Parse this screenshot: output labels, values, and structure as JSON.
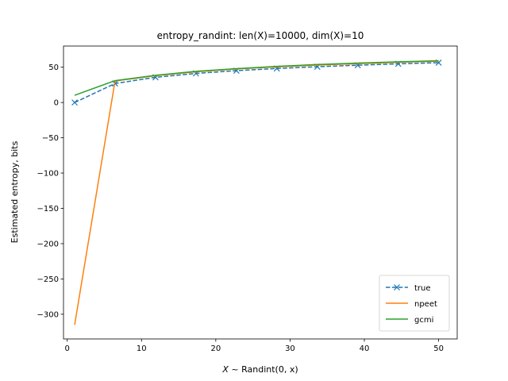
{
  "chart_data": {
    "type": "line",
    "title": "entropy_randint: len(X)=10000, dim(X)=10",
    "xlabel_prefix": "X",
    "xlabel_rest": " ~ Randint(0, x)",
    "ylabel": "Estimated entropy, bits",
    "xlim": [
      -0.5,
      52.5
    ],
    "ylim": [
      -335,
      80
    ],
    "xticks": [
      0,
      10,
      20,
      30,
      40,
      50
    ],
    "yticks": [
      50,
      0,
      -50,
      -100,
      -150,
      -200,
      -250,
      -300
    ],
    "grid": false,
    "legend_position": "lower right",
    "x": [
      1,
      6.44,
      11.89,
      17.33,
      22.78,
      28.22,
      33.67,
      39.11,
      44.56,
      50
    ],
    "series": [
      {
        "name": "true",
        "color": "#1f77b4",
        "dashed": true,
        "marker": "x",
        "values": [
          0,
          26.9,
          35.7,
          41.2,
          45.1,
          48.2,
          50.7,
          52.8,
          54.8,
          56.4
        ]
      },
      {
        "name": "npeet",
        "color": "#ff7f0e",
        "dashed": false,
        "marker": "none",
        "values": [
          -315,
          30.5,
          38.0,
          43.5,
          47.5,
          50.5,
          53.0,
          55.0,
          57.0,
          58.5
        ]
      },
      {
        "name": "gcmi",
        "color": "#2ca02c",
        "dashed": false,
        "marker": "none",
        "values": [
          10.2,
          31.0,
          38.5,
          44.2,
          48.0,
          51.2,
          53.8,
          55.8,
          57.6,
          59.2
        ]
      }
    ]
  }
}
